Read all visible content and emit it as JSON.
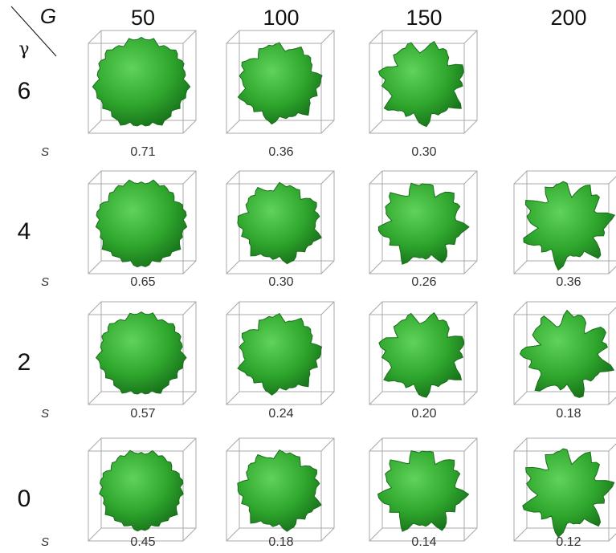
{
  "corner": {
    "col_symbol": "G",
    "row_symbol": "γ"
  },
  "columns": [
    "50",
    "100",
    "150",
    "200"
  ],
  "rows": [
    {
      "label": "6",
      "s_label": "S",
      "s": [
        "0.71",
        "0.36",
        "0.30",
        null
      ]
    },
    {
      "label": "4",
      "s_label": "S",
      "s": [
        "0.65",
        "0.30",
        "0.26",
        "0.36"
      ]
    },
    {
      "label": "2",
      "s_label": "S",
      "s": [
        "0.57",
        "0.24",
        "0.20",
        "0.18"
      ]
    },
    {
      "label": "0",
      "s_label": "S",
      "s": [
        "0.45",
        "0.18",
        "0.14",
        "0.12"
      ]
    }
  ]
}
